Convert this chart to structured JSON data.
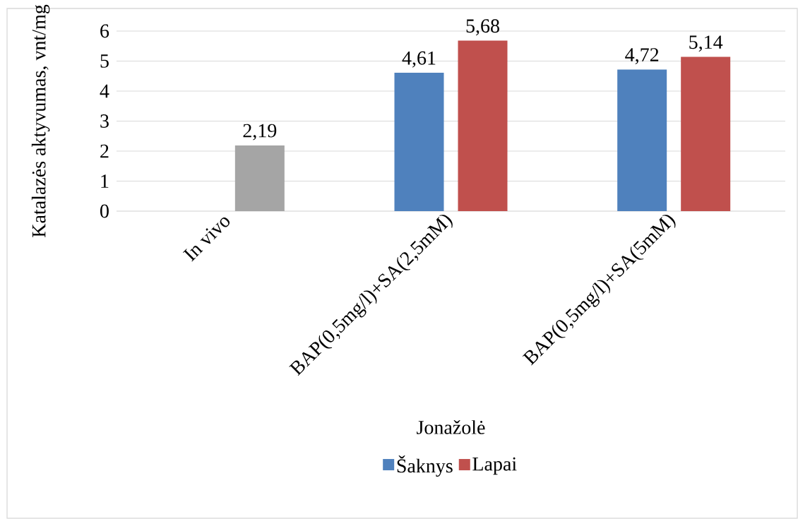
{
  "chart_data": {
    "type": "bar",
    "ylabel": "Katalazės aktyvumas, vnt/mg",
    "xlabel": "Jonažolė",
    "categories": [
      "In vivo",
      "BAP(0,5mg/l)+SA(2,5mM)",
      "BAP(0,5mg/l)+SA(5mM)"
    ],
    "series": [
      {
        "name": "Šaknys",
        "color": "#4f81bd",
        "values": [
          null,
          4.61,
          4.72
        ],
        "value_labels": [
          null,
          "4,61",
          "4,72"
        ]
      },
      {
        "name": "Lapai",
        "color": "#c0504d",
        "colors": [
          "#a5a5a5",
          "#c0504d",
          "#c0504d"
        ],
        "values": [
          2.19,
          5.68,
          5.14
        ],
        "value_labels": [
          "2,19",
          "5,68",
          "5,14"
        ]
      }
    ],
    "ylim": [
      0,
      6
    ],
    "yticks": [
      0,
      1,
      2,
      3,
      4,
      5,
      6
    ],
    "grid": "y",
    "legend": "bottom"
  }
}
